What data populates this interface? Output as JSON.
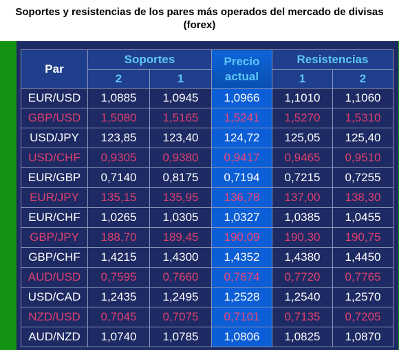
{
  "title_line1": "Soportes y resistencias de los pares más operados del mercado de divisas",
  "title_line2": "(forex)",
  "header": {
    "par": "Par",
    "soportes": "Soportes",
    "precio_line1": "Precio",
    "precio_line2": "actual",
    "resistencias": "Resistencias",
    "s2": "2",
    "s1": "1",
    "r1": "1",
    "r2": "2"
  },
  "colors": {
    "border_green": "#129312",
    "panel_navy": "#1d2a63",
    "current_blue": "#0c5ed6",
    "header_cyan": "#5dc7f5",
    "highlight_red": "#e0406e"
  },
  "rows": [
    {
      "pair": "EUR/USD",
      "s2": "1,0885",
      "s1": "1,0945",
      "price": "1,0966",
      "r1": "1,1010",
      "r2": "1,1060",
      "style": "white"
    },
    {
      "pair": "GBP/USD",
      "s2": "1,5080",
      "s1": "1,5165",
      "price": "1,5241",
      "r1": "1,5270",
      "r2": "1,5310",
      "style": "red"
    },
    {
      "pair": "USD/JPY",
      "s2": "123,85",
      "s1": "123,40",
      "price": "124,72",
      "r1": "125,05",
      "r2": "125,40",
      "style": "white"
    },
    {
      "pair": "USD/CHF",
      "s2": "0,9305",
      "s1": "0,9380",
      "price": "0,9417",
      "r1": "0,9465",
      "r2": "0,9510",
      "style": "red"
    },
    {
      "pair": "EUR/GBP",
      "s2": "0,7140",
      "s1": "0,8175",
      "price": "0,7194",
      "r1": "0,7215",
      "r2": "0,7255",
      "style": "white"
    },
    {
      "pair": "EUR/JPY",
      "s2": "135,15",
      "s1": "135,95",
      "price": "136,78",
      "r1": "137,00",
      "r2": "138,30",
      "style": "red"
    },
    {
      "pair": "EUR/CHF",
      "s2": "1,0265",
      "s1": "1,0305",
      "price": "1,0327",
      "r1": "1,0385",
      "r2": "1,0455",
      "style": "white"
    },
    {
      "pair": "GBP/JPY",
      "s2": "188,70",
      "s1": "189,45",
      "price": "190,09",
      "r1": "190,30",
      "r2": "190,75",
      "style": "red"
    },
    {
      "pair": "GBP/CHF",
      "s2": "1,4215",
      "s1": "1,4300",
      "price": "1,4352",
      "r1": "1,4380",
      "r2": "1,4450",
      "style": "white"
    },
    {
      "pair": "AUD/USD",
      "s2": "0,7595",
      "s1": "0,7660",
      "price": "0,7674",
      "r1": "0,7720",
      "r2": "0,7765",
      "style": "red"
    },
    {
      "pair": "USD/CAD",
      "s2": "1,2435",
      "s1": "1,2495",
      "price": "1,2528",
      "r1": "1,2540",
      "r2": "1,2570",
      "style": "white"
    },
    {
      "pair": "NZD/USD",
      "s2": "0,7045",
      "s1": "0,7075",
      "price": "0,7101",
      "r1": "0,7135",
      "r2": "0,7205",
      "style": "red"
    },
    {
      "pair": "AUD/NZD",
      "s2": "1,0740",
      "s1": "1,0785",
      "price": "1,0806",
      "r1": "1,0825",
      "r2": "1,0870",
      "style": "white"
    }
  ]
}
